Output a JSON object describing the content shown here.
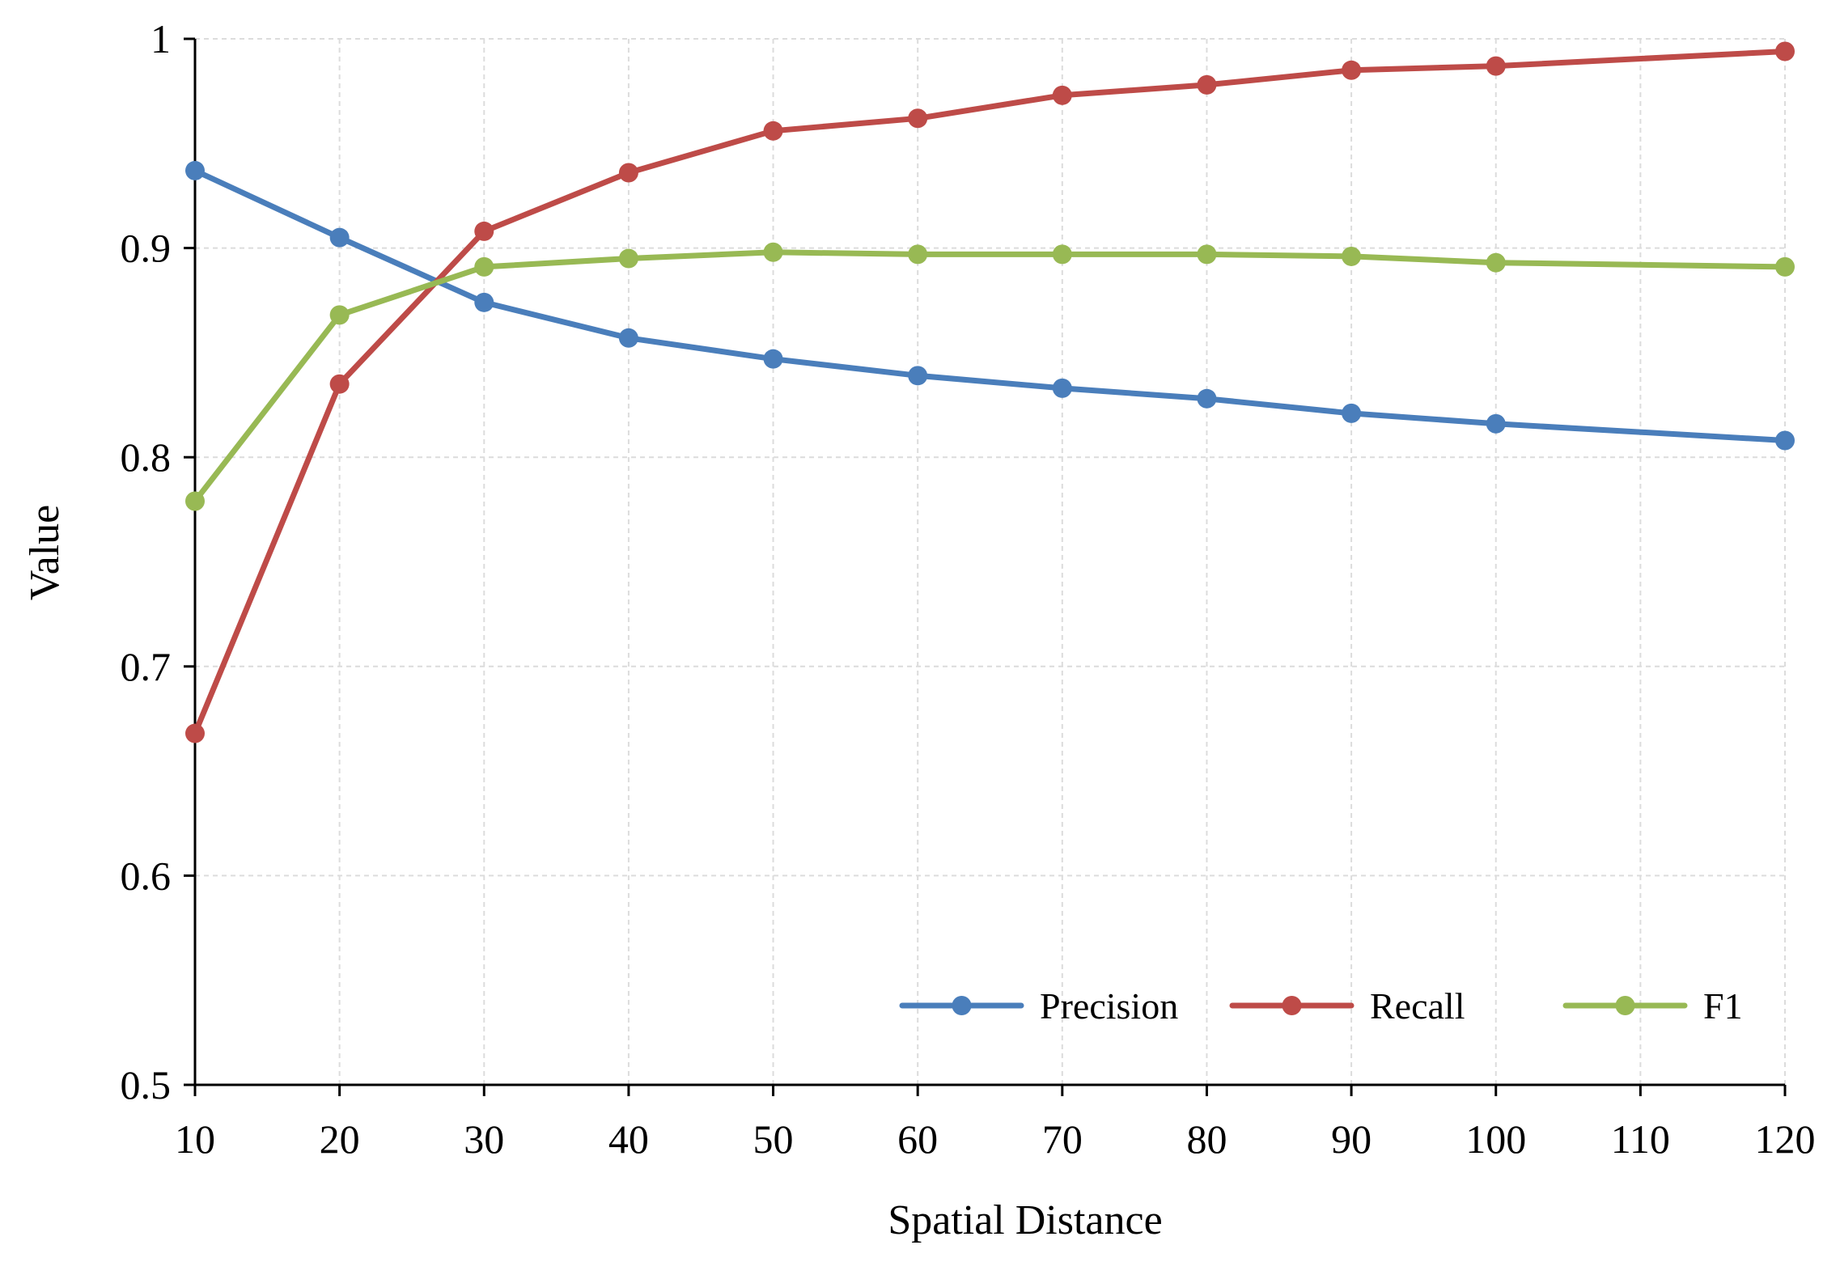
{
  "chart_data": {
    "type": "line",
    "title": "",
    "xlabel": "Spatial Distance",
    "ylabel": "Value",
    "x": [
      10,
      20,
      30,
      40,
      50,
      60,
      70,
      80,
      90,
      100,
      120
    ],
    "xticks": [
      10,
      20,
      30,
      40,
      50,
      60,
      70,
      80,
      90,
      100,
      110,
      120
    ],
    "xtick_labels": [
      "10",
      "20",
      "30",
      "40",
      "50",
      "60",
      "70",
      "80",
      "90",
      "100",
      "110",
      "120"
    ],
    "yticks": [
      0.5,
      0.6,
      0.7,
      0.8,
      0.9,
      1
    ],
    "ytick_labels": [
      "0.5",
      "0.6",
      "0.7",
      "0.8",
      "0.9",
      "1"
    ],
    "xlim": [
      10,
      120
    ],
    "ylim": [
      0.5,
      1
    ],
    "grid": true,
    "legend_position": "bottom-right",
    "series": [
      {
        "name": "Precision",
        "color": "#4a7ebb",
        "values": [
          0.937,
          0.905,
          0.874,
          0.857,
          0.847,
          0.839,
          0.833,
          0.828,
          0.821,
          0.816,
          0.808
        ]
      },
      {
        "name": "Recall",
        "color": "#be4b48",
        "values": [
          0.668,
          0.835,
          0.908,
          0.936,
          0.956,
          0.962,
          0.973,
          0.978,
          0.985,
          0.987,
          0.994
        ]
      },
      {
        "name": "F1",
        "color": "#98b954",
        "values": [
          0.779,
          0.868,
          0.891,
          0.895,
          0.898,
          0.897,
          0.897,
          0.897,
          0.896,
          0.893,
          0.891
        ]
      }
    ]
  }
}
